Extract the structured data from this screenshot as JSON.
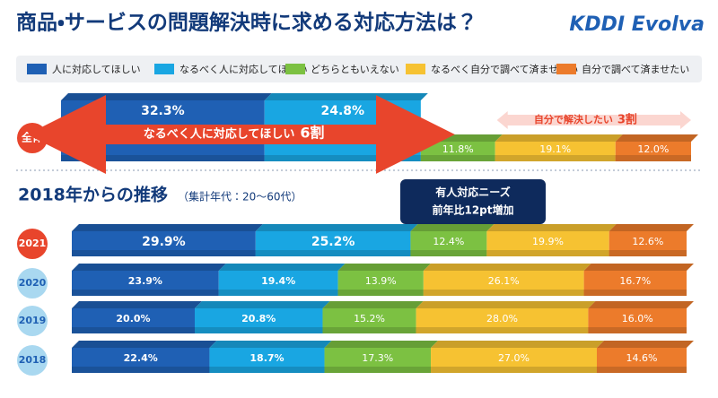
{
  "chart_data": {
    "type": "stacked-bar",
    "title": "商品・サービスの問題解決時に求める対応方法は？",
    "logo": "KDDI Evolva",
    "xlim": [
      0,
      100
    ],
    "categories": [
      "全体",
      "2021",
      "2020",
      "2019",
      "2018"
    ],
    "series": [
      {
        "name": "人に対応してほしい",
        "color": "#1f60b4",
        "values": [
          32.3,
          29.9,
          23.9,
          20.0,
          22.4
        ],
        "value_labels": [
          "32.3%",
          "29.9%",
          "23.9%",
          "20.0%",
          "22.4%"
        ]
      },
      {
        "name": "なるべく人に対応してほしい",
        "color": "#19a6e2",
        "values": [
          24.8,
          25.2,
          19.4,
          20.8,
          18.7
        ],
        "value_labels": [
          "24.8%",
          "25.2%",
          "19.4%",
          "20.8%",
          "18.7%"
        ]
      },
      {
        "name": "どちらともいえない",
        "color": "#7cc142",
        "values": [
          11.8,
          12.4,
          13.9,
          15.2,
          17.3
        ],
        "value_labels": [
          "11.8%",
          "12.4%",
          "13.9%",
          "15.2%",
          "17.3%"
        ]
      },
      {
        "name": "なるべく自分で調べて済ませたい",
        "color": "#f6c232",
        "values": [
          19.1,
          19.9,
          26.1,
          28.0,
          27.0
        ],
        "value_labels": [
          "19.1%",
          "19.9%",
          "26.1%",
          "28.0%",
          "27.0%"
        ]
      },
      {
        "name": "自分で調べて済ませたい",
        "color": "#ec7b2b",
        "values": [
          12.0,
          12.6,
          16.7,
          16.0,
          14.6
        ],
        "value_labels": [
          "12.0%",
          "12.6%",
          "16.7%",
          "16.0%",
          "14.6%"
        ]
      }
    ],
    "annotations": {
      "people": {
        "text": "なるべく人に対応してほしい",
        "share": "6割"
      },
      "self": {
        "text": "自分で解決したい",
        "share": "3割"
      }
    },
    "section_title": "2018年からの推移",
    "section_note": "（集計年代：20〜60代）",
    "callout": [
      "有人対応ニーズ",
      "前年比12pt増加"
    ]
  }
}
